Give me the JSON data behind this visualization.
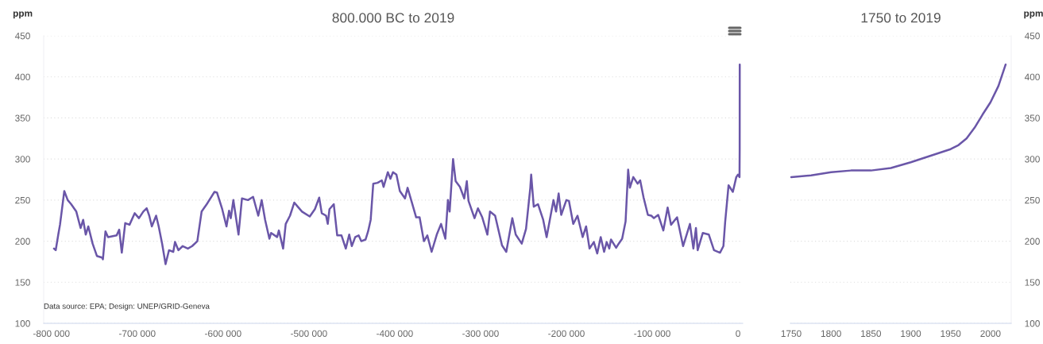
{
  "chart_data": [
    {
      "type": "line",
      "title": "800.000 BC to 2019",
      "ylabel": "ppm",
      "annotations": [
        "Data source: EPA; Design: UNEP/GRID-Geneva"
      ],
      "x": [
        -797000,
        -795000,
        -792000,
        -790000,
        -785000,
        -781000,
        -777000,
        -771000,
        -766000,
        -763000,
        -760000,
        -757000,
        -752000,
        -747000,
        -741000,
        -740000,
        -737000,
        -734000,
        -724000,
        -721000,
        -718000,
        -714000,
        -709000,
        -703000,
        -698000,
        -693000,
        -689000,
        -686000,
        -683000,
        -678000,
        -675000,
        -671000,
        -667000,
        -663000,
        -658000,
        -656000,
        -652000,
        -647000,
        -641000,
        -636000,
        -630000,
        -625000,
        -619000,
        -610000,
        -607000,
        -601000,
        -596000,
        -593000,
        -591000,
        -588000,
        -582000,
        -578000,
        -571000,
        -565000,
        -559000,
        -555000,
        -551000,
        -546000,
        -544000,
        -537000,
        -535000,
        -530000,
        -527000,
        -522000,
        -517000,
        -513000,
        -508000,
        -499000,
        -493000,
        -488000,
        -485000,
        -480000,
        -478000,
        -476000,
        -471000,
        -467000,
        -462000,
        -457000,
        -453000,
        -450000,
        -446000,
        -442000,
        -439000,
        -434000,
        -431000,
        -428000,
        -425000,
        -420000,
        -415000,
        -413000,
        -408000,
        -405000,
        -402000,
        -398000,
        -394000,
        -388000,
        -385000,
        -380000,
        -375000,
        -371000,
        -366000,
        -362000,
        -357000,
        -351000,
        -346000,
        -341000,
        -338000,
        -336000,
        -332000,
        -329000,
        -324000,
        -319000,
        -316000,
        -314000,
        -307000,
        -303000,
        -298000,
        -292000,
        -289000,
        -283000,
        -275000,
        -270000,
        -263000,
        -259000,
        -252000,
        -247000,
        -242000,
        -241000,
        -238000,
        -233000,
        -227000,
        -223000,
        -215000,
        -212000,
        -209000,
        -206000,
        -200000,
        -197000,
        -192000,
        -187000,
        -181000,
        -177000,
        -173000,
        -168000,
        -164000,
        -160000,
        -156000,
        -153000,
        -150000,
        -148000,
        -142000,
        -139000,
        -135000,
        -131000,
        -128000,
        -126000,
        -122000,
        -117000,
        -114000,
        -110000,
        -105000,
        -101000,
        -98000,
        -93000,
        -87000,
        -82000,
        -78000,
        -71000,
        -64000,
        -56000,
        -52000,
        -49000,
        -47000,
        -41000,
        -34000,
        -28000,
        -21000,
        -17000,
        -15000,
        -11000,
        -6000,
        -2000,
        0,
        1750,
        1950,
        2019
      ],
      "series": [
        {
          "color": "#6a56a8",
          "values": [
            191,
            189,
            208,
            220,
            261,
            250,
            245,
            236,
            216,
            226,
            208,
            218,
            197,
            182,
            180,
            178,
            212,
            205,
            207,
            214,
            186,
            222,
            220,
            234,
            228,
            236,
            240,
            231,
            218,
            231,
            218,
            197,
            172,
            189,
            187,
            199,
            189,
            194,
            191,
            194,
            200,
            236,
            245,
            260,
            259,
            239,
            218,
            237,
            228,
            250,
            208,
            252,
            250,
            254,
            231,
            250,
            226,
            203,
            210,
            205,
            213,
            191,
            221,
            231,
            247,
            242,
            236,
            230,
            239,
            253,
            234,
            231,
            221,
            239,
            245,
            207,
            207,
            191,
            208,
            194,
            205,
            207,
            200,
            202,
            212,
            226,
            270,
            271,
            274,
            266,
            284,
            276,
            284,
            281,
            261,
            252,
            265,
            247,
            229,
            229,
            200,
            207,
            187,
            208,
            221,
            203,
            250,
            236,
            300,
            273,
            266,
            252,
            273,
            249,
            228,
            240,
            229,
            208,
            236,
            231,
            195,
            187,
            228,
            208,
            197,
            215,
            265,
            281,
            242,
            245,
            226,
            205,
            250,
            236,
            258,
            232,
            250,
            249,
            221,
            231,
            205,
            218,
            191,
            199,
            185,
            205,
            187,
            199,
            191,
            202,
            192,
            197,
            203,
            224,
            287,
            265,
            278,
            270,
            274,
            253,
            232,
            231,
            228,
            232,
            213,
            241,
            220,
            229,
            194,
            221,
            191,
            216,
            189,
            210,
            208,
            189,
            186,
            194,
            223,
            268,
            260,
            278,
            281,
            278,
            312,
            415
          ]
        }
      ],
      "xlim": [
        -809000,
        5500
      ],
      "ylim": [
        100,
        450
      ],
      "xticks": [
        {
          "value": -800000,
          "label": "-800 000"
        },
        {
          "value": -700000,
          "label": "-700 000"
        },
        {
          "value": -600000,
          "label": "-600 000"
        },
        {
          "value": -500000,
          "label": "-500 000"
        },
        {
          "value": -400000,
          "label": "-400 000"
        },
        {
          "value": -300000,
          "label": "-300 000"
        },
        {
          "value": -200000,
          "label": "-200 000"
        },
        {
          "value": -100000,
          "label": "-100 000"
        },
        0
      ],
      "yticks": [
        100,
        150,
        200,
        250,
        300,
        350,
        400,
        450
      ],
      "grid": "y",
      "legend": false,
      "marker": "none",
      "line_style": "solid"
    },
    {
      "type": "line",
      "title": "1750 to 2019",
      "ylabel": "ppm",
      "x": [
        1750,
        1775,
        1800,
        1825,
        1850,
        1875,
        1900,
        1925,
        1950,
        1960,
        1970,
        1980,
        1990,
        2000,
        2010,
        2019
      ],
      "series": [
        {
          "color": "#6a56a8",
          "values": [
            278,
            280,
            284,
            286,
            286,
            289,
            296,
            304,
            312,
            317,
            325,
            338,
            354,
            369,
            389,
            415
          ]
        }
      ],
      "xlim": [
        1749,
        2026
      ],
      "ylim": [
        100,
        450
      ],
      "xticks": [
        1750,
        1800,
        1850,
        1900,
        1950,
        2000
      ],
      "yticks": [
        100,
        150,
        200,
        250,
        300,
        350,
        400,
        450
      ],
      "grid": "y",
      "legend": false,
      "marker": "none",
      "line_style": "solid"
    }
  ]
}
